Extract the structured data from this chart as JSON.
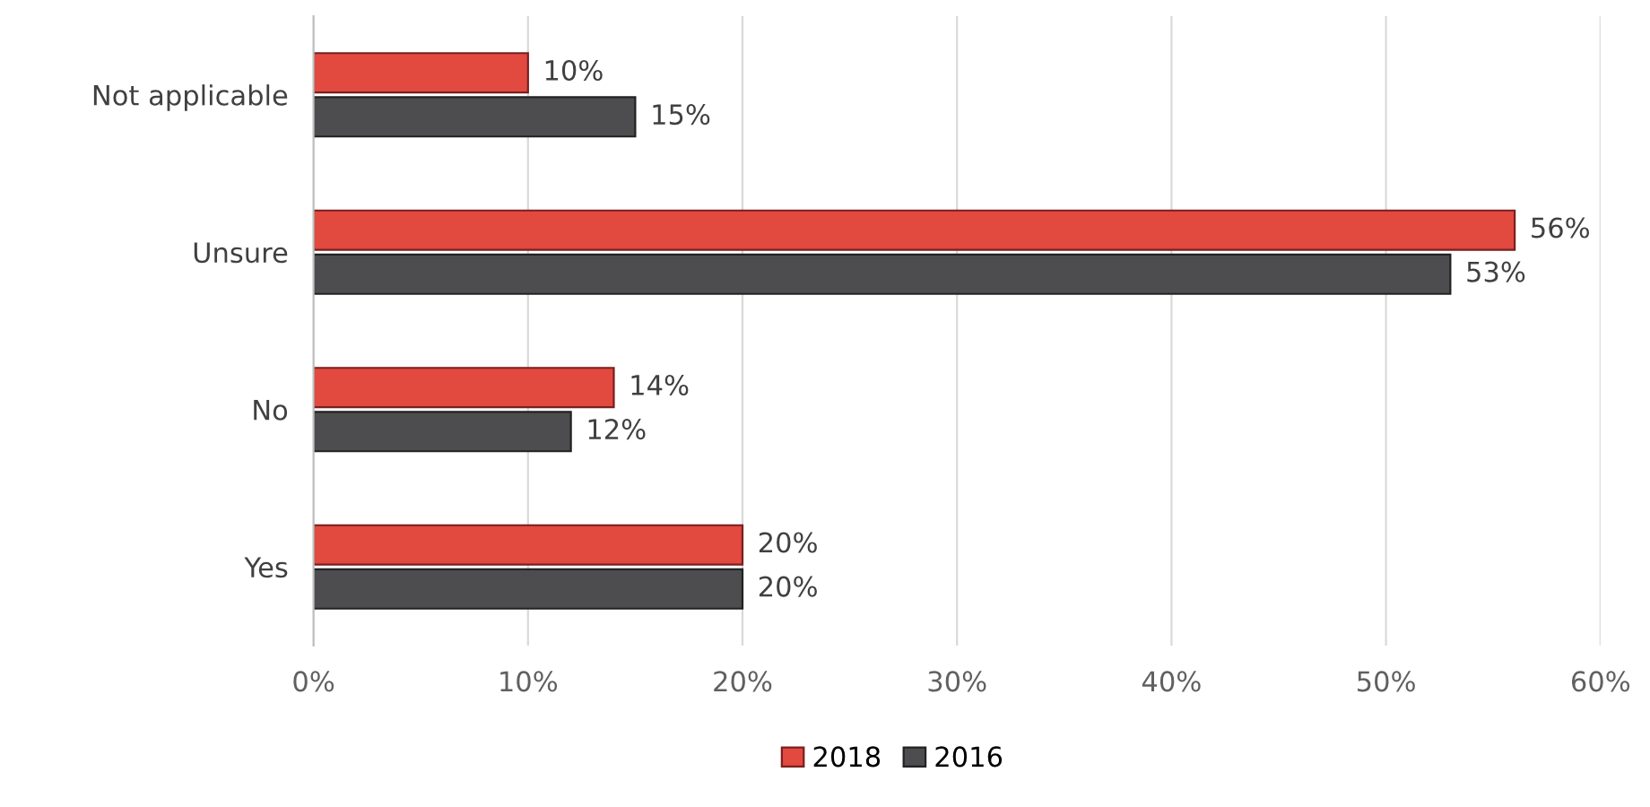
{
  "chart_data": {
    "type": "bar",
    "orientation": "horizontal",
    "categories": [
      "Not applicable",
      "Unsure",
      "No",
      "Yes"
    ],
    "series": [
      {
        "name": "2018",
        "color": "#e2493f",
        "values": [
          10,
          56,
          14,
          20
        ],
        "value_labels": [
          "10%",
          "56%",
          "14%",
          "20%"
        ]
      },
      {
        "name": "2016",
        "color": "#4d4d4f",
        "values": [
          15,
          53,
          12,
          20
        ],
        "value_labels": [
          "15%",
          "53%",
          "12%",
          "20%"
        ]
      }
    ],
    "xlim": [
      0,
      60
    ],
    "xticks": [
      {
        "value": 0,
        "label": "0%"
      },
      {
        "value": 10,
        "label": "10%"
      },
      {
        "value": 20,
        "label": "20%"
      },
      {
        "value": 30,
        "label": "30%"
      },
      {
        "value": 40,
        "label": "40%"
      },
      {
        "value": 50,
        "label": "50%"
      },
      {
        "value": 60,
        "label": "60%"
      }
    ],
    "grid": "x",
    "legend": "bottom"
  }
}
